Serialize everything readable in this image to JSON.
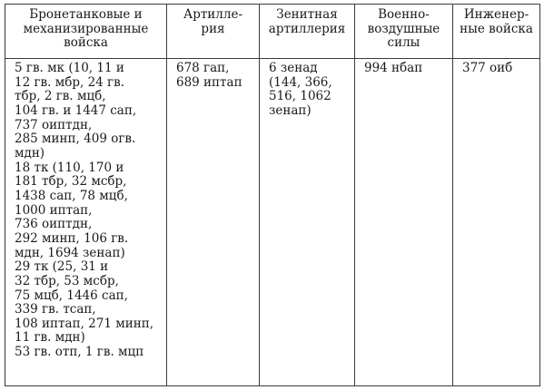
{
  "table": {
    "headers": [
      [
        "Бронетанковые и",
        "механизированные",
        "войска"
      ],
      [
        "Артилле-",
        "рия"
      ],
      [
        "Зенитная",
        "артиллерия"
      ],
      [
        "Военно-",
        "воздушные",
        "силы"
      ],
      [
        "Инженер-",
        "ные войска"
      ]
    ],
    "cells": [
      [
        "5 гв. мк (10, 11 и",
        "12 гв. мбр, 24 гв.",
        "тбр, 2 гв. мцб,",
        "104 гв. и 1447 сап,",
        "737 оиптдн,",
        "285 минп, 409 огв.",
        "мдн)",
        "18 тк (110, 170 и",
        "181 тбр, 32 мсбр,",
        "1438 сап, 78 мцб,",
        "1000 иптап,",
        "736 оиптдн,",
        "292 минп, 106 гв.",
        "мдн, 1694 зенап)",
        "29 тк (25, 31 и",
        "32 тбр, 53 мсбр,",
        "75 мцб, 1446 сап,",
        "339 гв. тсап,",
        "108 иптап, 271 минп,",
        "11 гв. мдн)",
        "53 гв. отп, 1 гв. мцп"
      ],
      [
        "678 гап,",
        "689 иптап"
      ],
      [
        "6 зенад",
        "(144, 366,",
        "516, 1062",
        "зенап)"
      ],
      [
        "994 нбап"
      ],
      [
        "377 оиб"
      ]
    ]
  }
}
